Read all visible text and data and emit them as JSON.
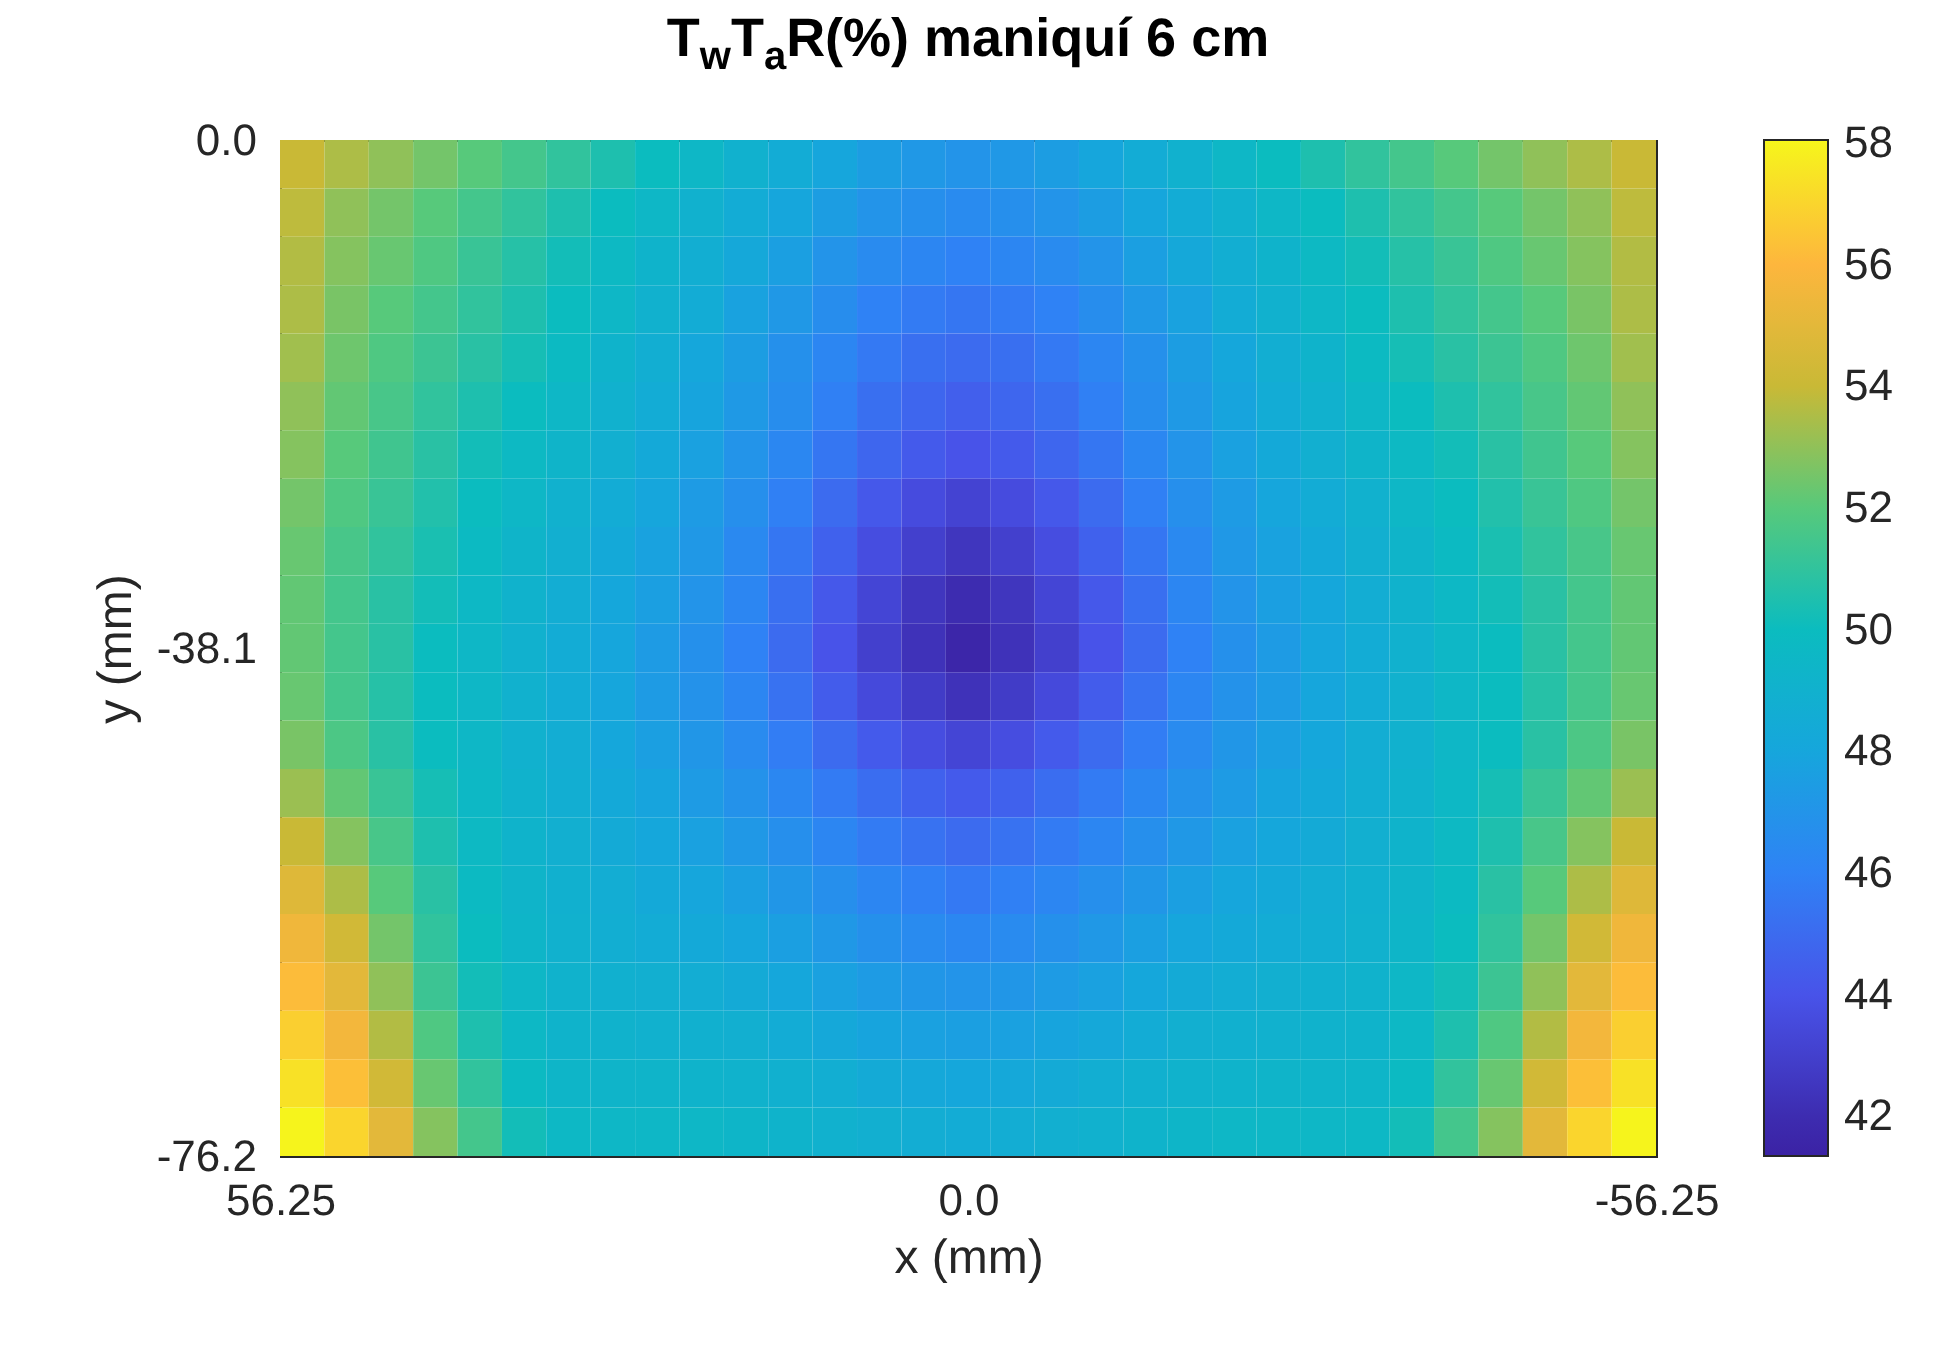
{
  "chart_data": {
    "type": "heatmap",
    "title": "T$_{w}$T$_{a}$R(%) maniquí 6 cm",
    "xlabel": "x (mm)",
    "ylabel": "y (mm)",
    "xlim": [
      56.25,
      -56.25
    ],
    "xticks": [
      56.25,
      {
        "value": 0,
        "label": "0.0"
      },
      -56.25
    ],
    "ylim": [
      -76.2,
      0
    ],
    "yticks": [
      -76.2,
      -38.1,
      {
        "value": 0,
        "label": "0.0"
      }
    ],
    "clim": [
      41.35,
      58.05
    ],
    "cticks": [
      42,
      44,
      46,
      48,
      50,
      52,
      54,
      56,
      58
    ],
    "cells": [
      [
        54,
        53.5,
        53,
        52.5,
        52,
        51.5,
        51,
        50.5,
        50,
        49.5,
        49,
        48.5,
        48,
        47.5,
        47.2,
        47,
        47.2,
        47.5,
        48,
        48.5,
        49,
        49.5,
        50,
        50.5,
        51,
        51.5,
        52,
        52.5,
        53,
        53.5,
        54
      ],
      [
        53.8,
        53,
        52.5,
        52,
        51.5,
        51,
        50.5,
        50,
        49.5,
        49,
        48.5,
        48,
        47.5,
        47,
        46.7,
        46.5,
        46.7,
        47,
        47.5,
        48,
        48.5,
        49,
        49.5,
        50,
        50.5,
        51,
        51.5,
        52,
        52.5,
        53,
        53.8
      ],
      [
        53.6,
        52.8,
        52.3,
        51.8,
        51.2,
        50.7,
        50.2,
        49.7,
        49.2,
        48.7,
        48.2,
        47.6,
        47,
        46.5,
        46.2,
        46,
        46.2,
        46.5,
        47,
        47.6,
        48.2,
        48.7,
        49.2,
        49.7,
        50.2,
        50.7,
        51.2,
        51.8,
        52.3,
        52.8,
        53.6
      ],
      [
        53.5,
        52.6,
        52,
        51.5,
        51,
        50.5,
        50,
        49.5,
        49,
        48.5,
        47.8,
        47.2,
        46.6,
        46,
        45.7,
        45.5,
        45.7,
        46,
        46.6,
        47.2,
        47.8,
        48.5,
        49,
        49.5,
        50,
        50.5,
        51,
        51.5,
        52,
        52.6,
        53.5
      ],
      [
        53.3,
        52.4,
        51.8,
        51.3,
        50.8,
        50.3,
        49.8,
        49.2,
        48.7,
        48.1,
        47.5,
        46.8,
        46.2,
        45.6,
        45.2,
        45,
        45.2,
        45.6,
        46.2,
        46.8,
        47.5,
        48.1,
        48.7,
        49.2,
        49.8,
        50.3,
        50.8,
        51.3,
        51.8,
        52.4,
        53.3
      ],
      [
        53,
        52.2,
        51.6,
        51,
        50.5,
        50,
        49.5,
        49,
        48.5,
        47.9,
        47.3,
        46.6,
        45.9,
        45.2,
        44.8,
        44.5,
        44.8,
        45.2,
        45.9,
        46.6,
        47.3,
        47.9,
        48.5,
        49,
        49.5,
        50,
        50.5,
        51,
        51.6,
        52.2,
        53
      ],
      [
        52.8,
        52,
        51.4,
        50.8,
        50.2,
        49.7,
        49.3,
        48.8,
        48.3,
        47.7,
        47,
        46.3,
        45.5,
        44.8,
        44.3,
        44,
        44.3,
        44.8,
        45.5,
        46.3,
        47,
        47.7,
        48.3,
        48.8,
        49.3,
        49.7,
        50.2,
        50.8,
        51.4,
        52,
        52.8
      ],
      [
        52.5,
        51.8,
        51.2,
        50.6,
        50,
        49.5,
        49,
        48.5,
        48,
        47.4,
        46.7,
        45.9,
        45,
        44.2,
        43.6,
        43.2,
        43.6,
        44.2,
        45,
        45.9,
        46.7,
        47.4,
        48,
        48.5,
        49,
        49.5,
        50,
        50.6,
        51.2,
        51.8,
        52.5
      ],
      [
        52.3,
        51.6,
        51,
        50.4,
        49.8,
        49.3,
        48.8,
        48.3,
        47.8,
        47.2,
        46.4,
        45.5,
        44.6,
        43.7,
        43,
        42.5,
        43,
        43.7,
        44.6,
        45.5,
        46.4,
        47.2,
        47.8,
        48.3,
        48.8,
        49.3,
        49.8,
        50.4,
        51,
        51.6,
        52.3
      ],
      [
        52.2,
        51.5,
        50.8,
        50.2,
        49.6,
        49.1,
        48.6,
        48.1,
        47.6,
        47,
        46.2,
        45.2,
        44.2,
        43.3,
        42.5,
        42,
        42.5,
        43.3,
        44.2,
        45.2,
        46.2,
        47,
        47.6,
        48.1,
        48.6,
        49.1,
        49.6,
        50.2,
        50.8,
        51.5,
        52.2
      ],
      [
        52.2,
        51.5,
        50.8,
        50,
        49.5,
        49,
        48.5,
        48,
        47.4,
        46.8,
        46,
        45,
        44,
        43,
        42.3,
        41.6,
        42.3,
        43,
        44,
        45,
        46,
        46.8,
        47.4,
        48,
        48.5,
        49,
        49.5,
        50,
        50.8,
        51.5,
        52.2
      ],
      [
        52.3,
        51.5,
        50.7,
        50,
        49.5,
        49,
        48.5,
        48,
        47.4,
        46.9,
        46.2,
        45.3,
        44.4,
        43.5,
        42.8,
        42.3,
        42.8,
        43.5,
        44.4,
        45.3,
        46.2,
        46.9,
        47.4,
        48,
        48.5,
        49,
        49.5,
        50,
        50.7,
        51.5,
        52.3
      ],
      [
        52.6,
        51.7,
        50.8,
        50,
        49.5,
        49,
        48.6,
        48.1,
        47.6,
        47.1,
        46.5,
        45.8,
        45,
        44.3,
        43.7,
        43.3,
        43.7,
        44.3,
        45,
        45.8,
        46.5,
        47.1,
        47.6,
        48.1,
        48.6,
        49,
        49.5,
        50,
        50.8,
        51.7,
        52.6
      ],
      [
        53.2,
        52.2,
        51.2,
        50.3,
        49.6,
        49.1,
        48.7,
        48.3,
        47.9,
        47.4,
        46.9,
        46.3,
        45.7,
        45.1,
        44.6,
        44.3,
        44.6,
        45.1,
        45.7,
        46.3,
        46.9,
        47.4,
        47.9,
        48.3,
        48.7,
        49.1,
        49.6,
        50.3,
        51.2,
        52.2,
        53.2
      ],
      [
        54,
        52.8,
        51.6,
        50.5,
        49.7,
        49.2,
        48.8,
        48.4,
        48.1,
        47.7,
        47.2,
        46.7,
        46.2,
        45.7,
        45.3,
        45,
        45.3,
        45.7,
        46.2,
        46.7,
        47.2,
        47.7,
        48.1,
        48.4,
        48.8,
        49.2,
        49.7,
        50.5,
        51.6,
        52.8,
        54
      ],
      [
        54.8,
        53.5,
        52,
        50.8,
        49.8,
        49.3,
        48.9,
        48.6,
        48.3,
        48,
        47.6,
        47.1,
        46.7,
        46.2,
        45.9,
        45.6,
        45.9,
        46.2,
        46.7,
        47.1,
        47.6,
        48,
        48.3,
        48.6,
        48.9,
        49.3,
        49.8,
        50.8,
        52,
        53.5,
        54.8
      ],
      [
        55.5,
        54.3,
        52.5,
        51,
        50,
        49.4,
        49,
        48.7,
        48.5,
        48.3,
        48,
        47.6,
        47.2,
        46.8,
        46.5,
        46.3,
        46.5,
        46.8,
        47.2,
        47.6,
        48,
        48.3,
        48.5,
        48.7,
        49,
        49.4,
        50,
        51,
        52.5,
        54.3,
        55.5
      ],
      [
        56.2,
        55,
        53,
        51.3,
        50.2,
        49.5,
        49.1,
        48.9,
        48.8,
        48.6,
        48.4,
        48.1,
        47.7,
        47.4,
        47.1,
        47,
        47.1,
        47.4,
        47.7,
        48.1,
        48.4,
        48.6,
        48.8,
        48.9,
        49.1,
        49.5,
        50.2,
        51.3,
        53,
        55,
        56.2
      ],
      [
        56.8,
        55.6,
        53.6,
        51.8,
        50.5,
        49.6,
        49.2,
        49.1,
        49,
        48.9,
        48.8,
        48.5,
        48.2,
        47.9,
        47.7,
        47.6,
        47.7,
        47.9,
        48.2,
        48.5,
        48.8,
        48.9,
        49,
        49.1,
        49.2,
        49.6,
        50.5,
        51.8,
        53.6,
        55.6,
        56.8
      ],
      [
        57.4,
        56.3,
        54.3,
        52.3,
        51,
        49.8,
        49.4,
        49.3,
        49.3,
        49.2,
        49.1,
        48.9,
        48.7,
        48.4,
        48.2,
        48.1,
        48.2,
        48.4,
        48.7,
        48.9,
        49.1,
        49.2,
        49.3,
        49.3,
        49.4,
        49.8,
        51,
        52.3,
        54.3,
        56.3,
        57.4
      ],
      [
        58,
        57,
        55,
        52.8,
        51.5,
        50.2,
        49.6,
        49.5,
        49.5,
        49.5,
        49.4,
        49.2,
        49,
        48.8,
        48.6,
        48.5,
        48.6,
        48.8,
        49,
        49.2,
        49.4,
        49.5,
        49.5,
        49.5,
        49.6,
        50.2,
        51.5,
        52.8,
        55,
        57,
        58
      ]
    ]
  }
}
